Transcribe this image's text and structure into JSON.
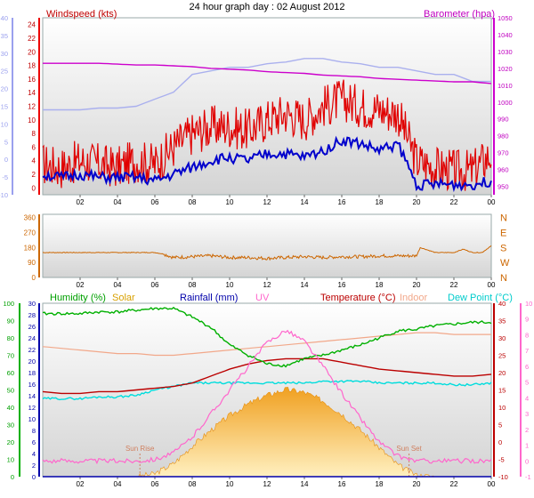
{
  "title": "24 hour graph day : 02 August 2012",
  "time_ticks": [
    "02",
    "04",
    "06",
    "08",
    "10",
    "12",
    "14",
    "16",
    "18",
    "20",
    "22",
    "00"
  ],
  "colors": {
    "wind": "#e00000",
    "wind_avg": "#0000cc",
    "gust_env": "#aab0ee",
    "baro": "#cc00cc",
    "dir": "#cc6600",
    "humidity": "#00b000",
    "solar": "#f0a020",
    "rain": "#0000aa",
    "uv": "#ff66cc",
    "temp": "#bb0000",
    "indoor": "#f2a88a",
    "dew": "#00dddd",
    "sun_marker": "#d08060"
  },
  "chart_data": [
    {
      "type": "line",
      "panel": "wind-barometer",
      "title": "",
      "left_axis_label": "Windspeed (kts)",
      "left_ticks_inner": [
        0,
        2,
        4,
        6,
        8,
        10,
        12,
        14,
        16,
        18,
        20,
        22,
        24
      ],
      "left_ticks_outer": [
        -10,
        -5,
        0,
        5,
        10,
        15,
        20,
        25,
        30,
        35,
        40
      ],
      "right_axis_label": "Barometer (hpa)",
      "right_ticks": [
        950,
        960,
        970,
        980,
        990,
        1000,
        1010,
        1020,
        1030,
        1040,
        1050
      ],
      "x_hours": [
        0,
        1,
        2,
        3,
        4,
        5,
        6,
        7,
        8,
        9,
        10,
        11,
        12,
        13,
        14,
        15,
        16,
        17,
        18,
        19,
        20,
        21,
        22,
        23,
        24
      ],
      "series": [
        {
          "values": [
            3.5,
            3,
            4,
            3.5,
            3,
            4,
            3.5,
            6,
            8,
            9,
            9,
            8.5,
            10,
            11,
            10,
            12,
            13,
            12,
            11.5,
            11,
            4,
            3,
            2.5,
            2.5,
            5
          ]
        },
        {
          "values": [
            2,
            1.5,
            2,
            1.5,
            1.5,
            1.5,
            1,
            2,
            3,
            4,
            4.5,
            4,
            5,
            5,
            4.5,
            5.5,
            7,
            6.5,
            5.5,
            6.5,
            0.5,
            0.5,
            0.5,
            0.5,
            1
          ]
        },
        {
          "values": [
            14,
            14,
            14,
            14.5,
            14.5,
            15,
            17,
            19,
            24,
            25,
            26,
            26,
            27,
            27.5,
            28.5,
            28.5,
            27.5,
            27,
            26,
            26,
            25,
            24,
            24,
            22,
            22
          ]
        },
        {
          "values": [
            1023,
            1023,
            1023,
            1023,
            1022.5,
            1022,
            1022,
            1021.5,
            1021,
            1020,
            1019.5,
            1019,
            1018,
            1017.5,
            1017,
            1016,
            1015.5,
            1015,
            1014,
            1013.5,
            1013,
            1012.5,
            1012,
            1012,
            1011
          ]
        }
      ]
    },
    {
      "type": "line",
      "panel": "wind-direction",
      "title": "",
      "left_ticks": [
        0,
        90,
        180,
        270,
        360
      ],
      "right_labels": [
        "N",
        "W",
        "S",
        "E",
        "N"
      ],
      "series": [
        {
          "x": [
            0,
            1,
            2,
            3,
            4,
            5,
            6,
            6.5,
            7,
            8,
            9,
            10,
            11,
            12,
            13,
            14,
            15,
            16,
            17,
            18,
            19,
            20,
            20.2,
            21,
            22,
            22.5,
            23,
            23.5,
            24
          ],
          "values": [
            150,
            150,
            150,
            150,
            150,
            150,
            150,
            140,
            120,
            125,
            130,
            120,
            120,
            115,
            120,
            125,
            120,
            125,
            125,
            130,
            130,
            130,
            180,
            150,
            150,
            170,
            150,
            150,
            190
          ]
        }
      ]
    },
    {
      "type": "line",
      "panel": "weather",
      "title": "",
      "labels": {
        "humidity": "Humidity (%)",
        "solar": "Solar",
        "rain": "Rainfall (mm)",
        "uv": "UV",
        "temp": "Temperature (°C)",
        "indoor": "Indoor",
        "dew": "Dew Point (°C)"
      },
      "humidity_ticks": [
        0,
        10,
        20,
        30,
        40,
        50,
        60,
        70,
        80,
        90,
        100
      ],
      "rain_ticks": [
        0,
        2,
        4,
        6,
        8,
        10,
        12,
        14,
        16,
        18,
        20,
        22,
        24,
        26,
        28,
        30
      ],
      "temp_ticks": [
        -10,
        -5,
        0,
        5,
        10,
        15,
        20,
        25,
        30,
        35,
        40
      ],
      "uv_ticks": [
        -1,
        0,
        1,
        2,
        3,
        4,
        5,
        6,
        7,
        8,
        9,
        10
      ],
      "sun_rise_label": "Sun Rise",
      "sun_set_label": "Sun Set",
      "sun_rise_hour": 5.2,
      "sun_set_hour": 19.6,
      "x_hours": [
        0,
        1,
        2,
        3,
        4,
        5,
        6,
        7,
        8,
        9,
        10,
        11,
        12,
        13,
        14,
        15,
        16,
        17,
        18,
        19,
        20,
        21,
        22,
        23,
        24
      ],
      "series": [
        {
          "values": [
            94,
            94,
            94,
            95,
            95,
            96,
            97,
            97,
            92,
            86,
            76,
            70,
            65,
            64,
            68,
            70,
            73,
            76,
            80,
            84,
            85,
            87,
            88,
            89,
            89
          ]
        },
        {
          "values": [
            0,
            0,
            0,
            0,
            0,
            0,
            20,
            90,
            210,
            320,
            420,
            500,
            560,
            600,
            580,
            520,
            430,
            320,
            200,
            80,
            10,
            0,
            0,
            0,
            0
          ]
        },
        {
          "values": [
            0,
            0,
            0,
            0,
            0,
            0,
            0,
            0,
            0,
            0,
            0,
            0,
            0,
            0,
            0,
            0,
            0,
            0,
            0,
            0,
            0,
            0,
            0,
            0,
            0
          ]
        },
        {
          "values": [
            0,
            0,
            0,
            0,
            0,
            0,
            0.1,
            0.5,
            1.5,
            3,
            4.5,
            6,
            7.5,
            8.3,
            7.6,
            6,
            4.3,
            2.7,
            1.2,
            0.3,
            0,
            0,
            0,
            0,
            0
          ]
        },
        {
          "values": [
            14.5,
            14,
            14,
            14.5,
            14.5,
            15,
            15.5,
            16,
            17,
            19,
            21,
            22.5,
            23.5,
            24,
            24,
            24,
            23,
            22,
            21,
            20.5,
            20,
            19.5,
            19,
            19,
            19.5
          ]
        },
        {
          "values": [
            27.5,
            27,
            26.5,
            26,
            25.5,
            25.5,
            25,
            25,
            25.5,
            26,
            26.5,
            27,
            27.5,
            28,
            28.5,
            29,
            29.5,
            30,
            30.5,
            31,
            31.5,
            31.5,
            31,
            31,
            31
          ]
        },
        {
          "values": [
            12.5,
            12.5,
            12.5,
            13,
            13,
            13.5,
            15,
            16,
            17,
            17,
            17,
            17,
            17,
            17,
            17,
            17.5,
            17.5,
            17.5,
            17,
            17,
            17,
            17,
            16.5,
            16.5,
            17
          ]
        }
      ]
    }
  ]
}
